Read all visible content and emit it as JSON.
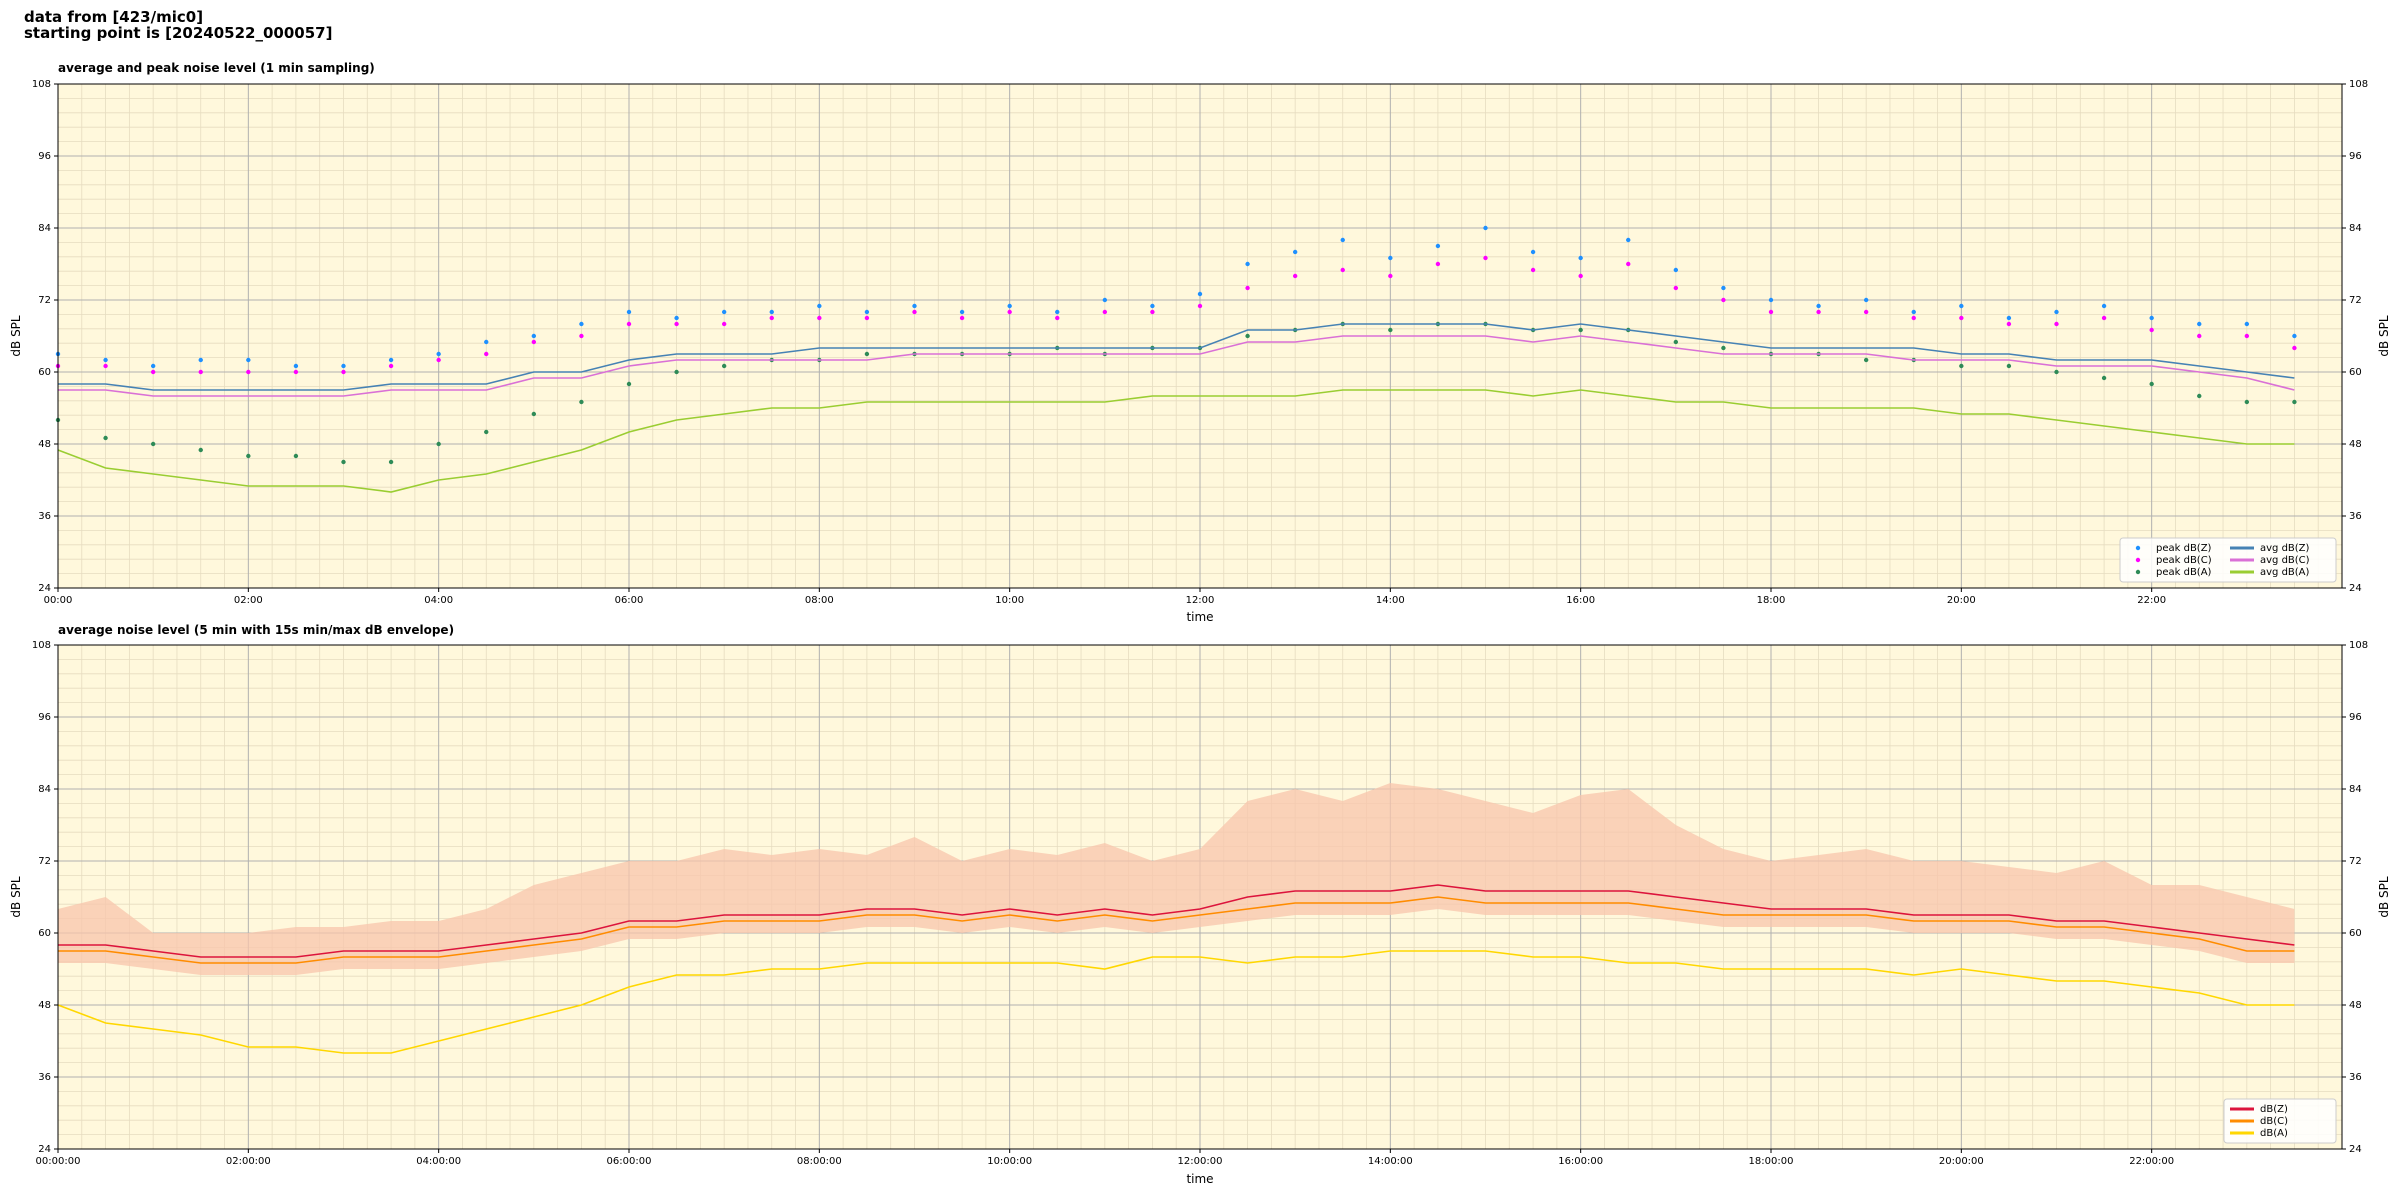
{
  "header": {
    "lines": [
      "data from [423/mic0]",
      "starting point is [20240522_000057]"
    ]
  },
  "chart_data": [
    {
      "type": "line",
      "title": "average and peak noise level (1 min sampling)",
      "x_label": "time",
      "y_label": "dB SPL",
      "background": "#fff8dc",
      "grid": true,
      "legend": "lower right",
      "legend_columns": 2,
      "xlim": [
        0,
        24
      ],
      "xticks": [
        {
          "value": 0,
          "label": "00:00"
        },
        {
          "value": 2,
          "label": "02:00"
        },
        {
          "value": 4,
          "label": "04:00"
        },
        {
          "value": 6,
          "label": "06:00"
        },
        {
          "value": 8,
          "label": "08:00"
        },
        {
          "value": 10,
          "label": "10:00"
        },
        {
          "value": 12,
          "label": "12:00"
        },
        {
          "value": 14,
          "label": "14:00"
        },
        {
          "value": 16,
          "label": "16:00"
        },
        {
          "value": 18,
          "label": "18:00"
        },
        {
          "value": 20,
          "label": "20:00"
        },
        {
          "value": 22,
          "label": "22:00"
        }
      ],
      "ylim": [
        24,
        108
      ],
      "yticks": [
        24,
        36,
        48,
        60,
        72,
        84,
        96,
        108
      ],
      "x": [
        0,
        0.5,
        1,
        1.5,
        2,
        2.5,
        3,
        3.5,
        4,
        4.5,
        5,
        5.5,
        6,
        6.5,
        7,
        7.5,
        8,
        8.5,
        9,
        9.5,
        10,
        10.5,
        11,
        11.5,
        12,
        12.5,
        13,
        13.5,
        14,
        14.5,
        15,
        15.5,
        16,
        16.5,
        17,
        17.5,
        18,
        18.5,
        19,
        19.5,
        20,
        20.5,
        21,
        21.5,
        22,
        22.5,
        23,
        23.5
      ],
      "series": [
        {
          "name": "peak dB(Z)",
          "type": "scatter",
          "color": "#1e90ff",
          "values": [
            63,
            62,
            61,
            62,
            62,
            61,
            61,
            62,
            63,
            65,
            66,
            68,
            70,
            69,
            70,
            70,
            71,
            70,
            71,
            70,
            71,
            70,
            72,
            71,
            73,
            78,
            80,
            82,
            79,
            81,
            84,
            80,
            79,
            82,
            77,
            74,
            72,
            71,
            72,
            70,
            71,
            69,
            70,
            71,
            69,
            68,
            68,
            66
          ]
        },
        {
          "name": "peak dB(C)",
          "type": "scatter",
          "color": "#ff00ff",
          "values": [
            61,
            61,
            60,
            60,
            60,
            60,
            60,
            61,
            62,
            63,
            65,
            66,
            68,
            68,
            68,
            69,
            69,
            69,
            70,
            69,
            70,
            69,
            70,
            70,
            71,
            74,
            76,
            77,
            76,
            78,
            79,
            77,
            76,
            78,
            74,
            72,
            70,
            70,
            70,
            69,
            69,
            68,
            68,
            69,
            67,
            66,
            66,
            64
          ]
        },
        {
          "name": "peak dB(A)",
          "type": "scatter",
          "color": "#2e8b57",
          "values": [
            52,
            49,
            48,
            47,
            46,
            46,
            45,
            45,
            48,
            50,
            53,
            55,
            58,
            60,
            61,
            62,
            62,
            63,
            63,
            63,
            63,
            64,
            63,
            64,
            64,
            66,
            67,
            68,
            67,
            68,
            68,
            67,
            67,
            67,
            65,
            64,
            63,
            63,
            62,
            62,
            61,
            61,
            60,
            59,
            58,
            56,
            55,
            55
          ]
        },
        {
          "name": "avg dB(Z)",
          "type": "line",
          "color": "#4682b4",
          "values": [
            58,
            58,
            57,
            57,
            57,
            57,
            57,
            58,
            58,
            58,
            60,
            60,
            62,
            63,
            63,
            63,
            64,
            64,
            64,
            64,
            64,
            64,
            64,
            64,
            64,
            67,
            67,
            68,
            68,
            68,
            68,
            67,
            68,
            67,
            66,
            65,
            64,
            64,
            64,
            64,
            63,
            63,
            62,
            62,
            62,
            61,
            60,
            59
          ]
        },
        {
          "name": "avg dB(C)",
          "type": "line",
          "color": "#da70d6",
          "values": [
            57,
            57,
            56,
            56,
            56,
            56,
            56,
            57,
            57,
            57,
            59,
            59,
            61,
            62,
            62,
            62,
            62,
            62,
            63,
            63,
            63,
            63,
            63,
            63,
            63,
            65,
            65,
            66,
            66,
            66,
            66,
            65,
            66,
            65,
            64,
            63,
            63,
            63,
            63,
            62,
            62,
            62,
            61,
            61,
            61,
            60,
            59,
            57
          ]
        },
        {
          "name": "avg dB(A)",
          "type": "line",
          "color": "#9acd32",
          "values": [
            47,
            44,
            43,
            42,
            41,
            41,
            41,
            40,
            42,
            43,
            45,
            47,
            50,
            52,
            53,
            54,
            54,
            55,
            55,
            55,
            55,
            55,
            55,
            56,
            56,
            56,
            56,
            57,
            57,
            57,
            57,
            56,
            57,
            56,
            55,
            55,
            54,
            54,
            54,
            54,
            53,
            53,
            52,
            51,
            50,
            49,
            48,
            48
          ]
        }
      ]
    },
    {
      "type": "line",
      "title": "average noise level (5 min with 15s min/max dB envelope)",
      "x_label": "time",
      "y_label": "dB SPL",
      "background": "#fff8dc",
      "grid": true,
      "legend": "lower right",
      "legend_columns": 1,
      "xlim": [
        0,
        24
      ],
      "xticks": [
        {
          "value": 0,
          "label": "00:00:00"
        },
        {
          "value": 2,
          "label": "02:00:00"
        },
        {
          "value": 4,
          "label": "04:00:00"
        },
        {
          "value": 6,
          "label": "06:00:00"
        },
        {
          "value": 8,
          "label": "08:00:00"
        },
        {
          "value": 10,
          "label": "10:00:00"
        },
        {
          "value": 12,
          "label": "12:00:00"
        },
        {
          "value": 14,
          "label": "14:00:00"
        },
        {
          "value": 16,
          "label": "16:00:00"
        },
        {
          "value": 18,
          "label": "18:00:00"
        },
        {
          "value": 20,
          "label": "20:00:00"
        },
        {
          "value": 22,
          "label": "22:00:00"
        }
      ],
      "ylim": [
        24,
        108
      ],
      "yticks": [
        24,
        36,
        48,
        60,
        72,
        84,
        96,
        108
      ],
      "x": [
        0,
        0.5,
        1,
        1.5,
        2,
        2.5,
        3,
        3.5,
        4,
        4.5,
        5,
        5.5,
        6,
        6.5,
        7,
        7.5,
        8,
        8.5,
        9,
        9.5,
        10,
        10.5,
        11,
        11.5,
        12,
        12.5,
        13,
        13.5,
        14,
        14.5,
        15,
        15.5,
        16,
        16.5,
        17,
        17.5,
        18,
        18.5,
        19,
        19.5,
        20,
        20.5,
        21,
        21.5,
        22,
        22.5,
        23,
        23.5
      ],
      "band": {
        "color": "#f8c6ac",
        "upper": [
          64,
          66,
          60,
          60,
          60,
          61,
          61,
          62,
          62,
          64,
          68,
          70,
          72,
          72,
          74,
          73,
          74,
          73,
          76,
          72,
          74,
          73,
          75,
          72,
          74,
          82,
          84,
          82,
          85,
          84,
          82,
          80,
          83,
          84,
          78,
          74,
          72,
          73,
          74,
          72,
          72,
          71,
          70,
          72,
          68,
          68,
          66,
          64
        ],
        "lower": [
          55,
          55,
          54,
          53,
          53,
          53,
          54,
          54,
          54,
          55,
          56,
          57,
          59,
          59,
          60,
          60,
          60,
          61,
          61,
          60,
          61,
          60,
          61,
          60,
          61,
          62,
          63,
          63,
          63,
          64,
          63,
          63,
          63,
          63,
          62,
          61,
          61,
          61,
          61,
          60,
          60,
          60,
          59,
          59,
          58,
          57,
          55,
          55
        ]
      },
      "series": [
        {
          "name": "dB(Z)",
          "type": "line",
          "color": "#dc143c",
          "values": [
            58,
            58,
            57,
            56,
            56,
            56,
            57,
            57,
            57,
            58,
            59,
            60,
            62,
            62,
            63,
            63,
            63,
            64,
            64,
            63,
            64,
            63,
            64,
            63,
            64,
            66,
            67,
            67,
            67,
            68,
            67,
            67,
            67,
            67,
            66,
            65,
            64,
            64,
            64,
            63,
            63,
            63,
            62,
            62,
            61,
            60,
            59,
            58
          ]
        },
        {
          "name": "dB(C)",
          "type": "line",
          "color": "#ff8c00",
          "values": [
            57,
            57,
            56,
            55,
            55,
            55,
            56,
            56,
            56,
            57,
            58,
            59,
            61,
            61,
            62,
            62,
            62,
            63,
            63,
            62,
            63,
            62,
            63,
            62,
            63,
            64,
            65,
            65,
            65,
            66,
            65,
            65,
            65,
            65,
            64,
            63,
            63,
            63,
            63,
            62,
            62,
            62,
            61,
            61,
            60,
            59,
            57,
            57
          ]
        },
        {
          "name": "dB(A)",
          "type": "line",
          "color": "#ffd700",
          "values": [
            48,
            45,
            44,
            43,
            41,
            41,
            40,
            40,
            42,
            44,
            46,
            48,
            51,
            53,
            53,
            54,
            54,
            55,
            55,
            55,
            55,
            55,
            54,
            56,
            56,
            55,
            56,
            56,
            57,
            57,
            57,
            56,
            56,
            55,
            55,
            54,
            54,
            54,
            54,
            53,
            54,
            53,
            52,
            52,
            51,
            50,
            48,
            48
          ]
        }
      ]
    }
  ]
}
